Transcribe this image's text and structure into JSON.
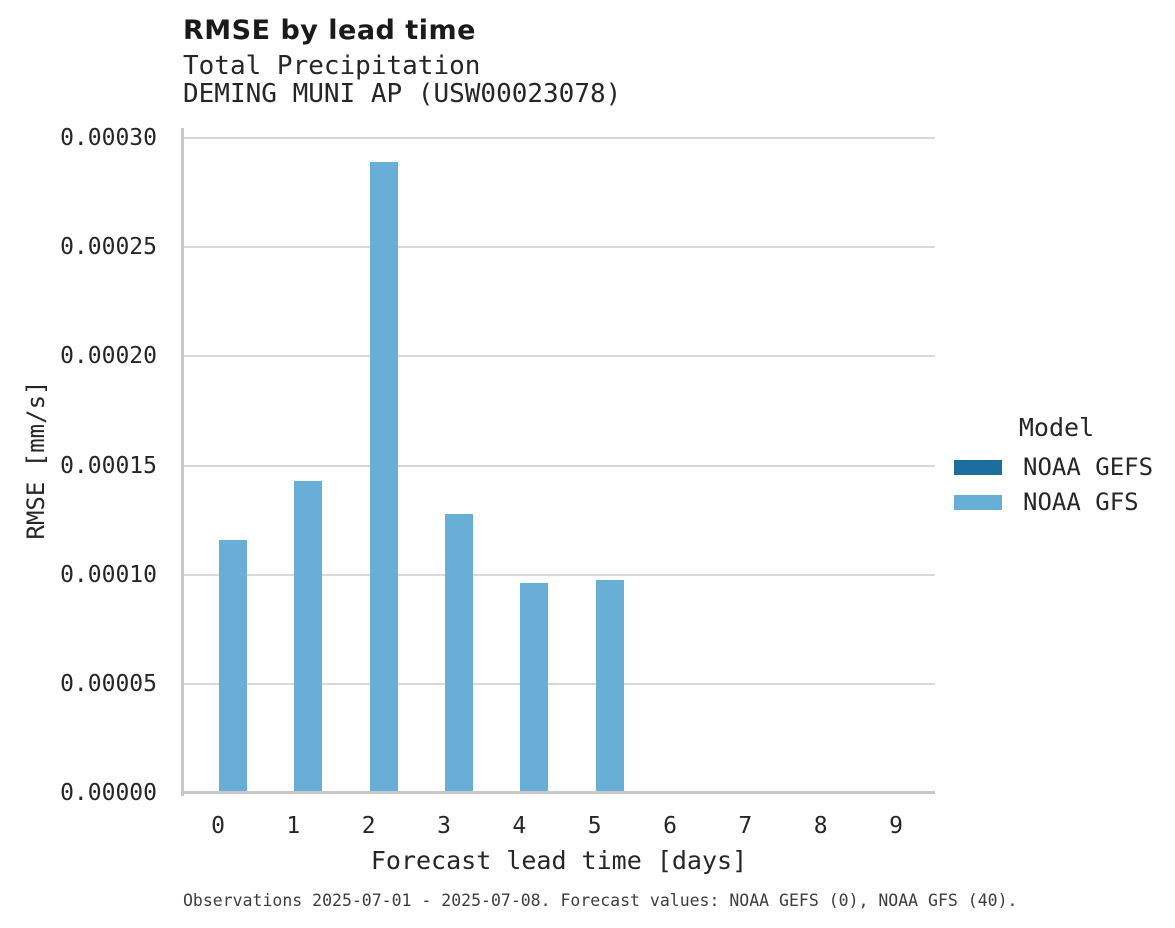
{
  "chart_data": {
    "type": "bar",
    "title": "RMSE by lead time",
    "subtitle1": "Total Precipitation",
    "subtitle2": "DEMING MUNI AP (USW00023078)",
    "xlabel": "Forecast lead time [days]",
    "ylabel": "RMSE [mm/s]",
    "categories": [
      "0",
      "1",
      "2",
      "3",
      "4",
      "5",
      "6",
      "7",
      "8",
      "9"
    ],
    "series": [
      {
        "name": "NOAA GEFS",
        "color": "#1d6e9e",
        "values": [
          0,
          0,
          0,
          0,
          0,
          0,
          0,
          0,
          0,
          0
        ]
      },
      {
        "name": "NOAA GFS",
        "color": "#68aed6",
        "values": [
          0.000116,
          0.000143,
          0.000289,
          0.000128,
          9.62e-05,
          9.75e-05,
          null,
          null,
          null,
          null
        ]
      }
    ],
    "ylim": [
      0,
      0.000305
    ],
    "yticks": [
      {
        "value": 0.0,
        "label": "0.00000"
      },
      {
        "value": 5e-05,
        "label": "0.00005"
      },
      {
        "value": 0.0001,
        "label": "0.00010"
      },
      {
        "value": 0.00015,
        "label": "0.00015"
      },
      {
        "value": 0.0002,
        "label": "0.00020"
      },
      {
        "value": 0.00025,
        "label": "0.00025"
      },
      {
        "value": 0.0003,
        "label": "0.00030"
      }
    ],
    "grid": true,
    "legend_title": "Model",
    "legend_position": "right",
    "caption": "Observations 2025-07-01 - 2025-07-08. Forecast values: NOAA GEFS (0), NOAA GFS (40)."
  },
  "colors": {
    "gridline": "#d9d9d9",
    "axis_line": "#c8c8c8",
    "background": "#ffffff"
  }
}
